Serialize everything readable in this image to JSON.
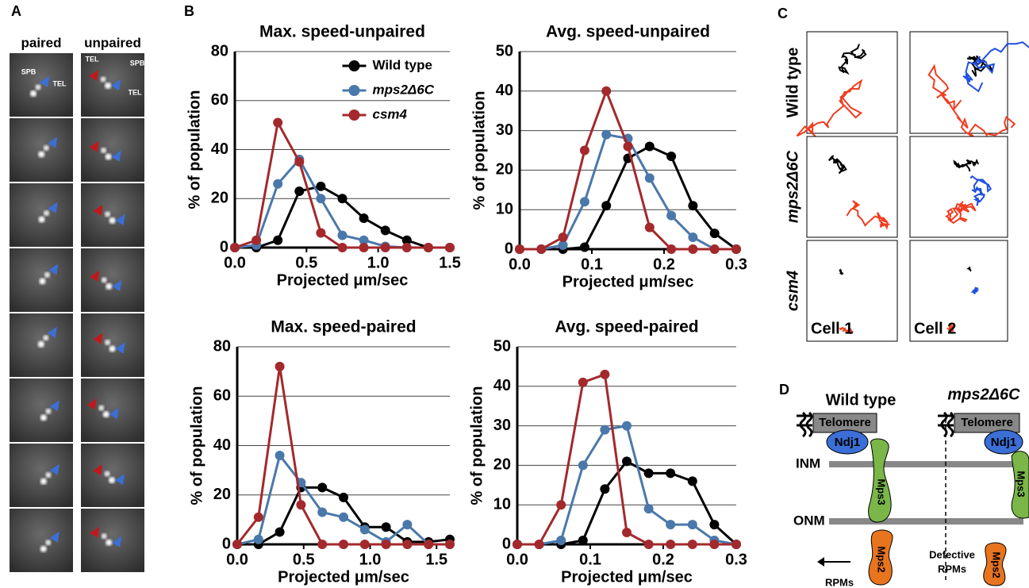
{
  "panel_a": {
    "letter": "A",
    "columns": [
      "paired",
      "unpaired"
    ],
    "annotations": [
      "SPB",
      "TEL",
      "TEL",
      "SPB",
      "TEL"
    ]
  },
  "panel_b": {
    "letter": "B"
  },
  "chart_data": [
    {
      "type": "line",
      "title": "Max. speed-unpaired",
      "xlabel": "Projected μm/sec",
      "ylabel": "% of population",
      "x": [
        0,
        0.15,
        0.3,
        0.45,
        0.6,
        0.75,
        0.9,
        1.05,
        1.2,
        1.35,
        1.5
      ],
      "xlim": [
        0,
        1.5
      ],
      "xticks": [
        {
          "value": 0,
          "label": "0.0"
        },
        0.5,
        {
          "value": 1,
          "label": "1.0"
        },
        1.5
      ],
      "ylim": [
        0,
        80
      ],
      "yticks": [
        0,
        20,
        40,
        60,
        80
      ],
      "grid": true,
      "legend": "upper right",
      "series": [
        {
          "name": "Wild type",
          "color": "#000000",
          "values": [
            0,
            0,
            3,
            23,
            25,
            20,
            12,
            7,
            3,
            0,
            0
          ]
        },
        {
          "name": "mps2Δ6C",
          "color": "#4a78aa",
          "values": [
            0,
            1,
            26,
            36,
            20,
            5,
            3,
            0.5,
            0,
            0,
            0
          ]
        },
        {
          "name": "csm4",
          "color": "#a3292c",
          "values": [
            0,
            3,
            51,
            35,
            6,
            0,
            0,
            0,
            0,
            0,
            0
          ]
        }
      ]
    },
    {
      "type": "line",
      "title": "Avg. speed-unpaired",
      "xlabel": "Projected μm/sec",
      "ylabel": "% of population",
      "x": [
        0,
        0.03,
        0.06,
        0.09,
        0.12,
        0.15,
        0.18,
        0.21,
        0.24,
        0.27,
        0.3
      ],
      "xlim": [
        0,
        0.3
      ],
      "xticks": [
        {
          "value": 0,
          "label": "0.0"
        },
        0.1,
        0.2,
        0.3
      ],
      "ylim": [
        0,
        50
      ],
      "yticks": [
        0,
        10,
        20,
        30,
        40,
        50
      ],
      "grid": true,
      "series": [
        {
          "color": "#000000",
          "values": [
            0,
            0,
            0,
            0.5,
            11,
            23,
            26,
            23.5,
            11,
            4,
            0
          ]
        },
        {
          "color": "#4a78aa",
          "values": [
            0,
            0,
            1,
            12,
            29,
            28,
            18,
            8.5,
            3,
            0,
            0
          ]
        },
        {
          "color": "#a3292c",
          "values": [
            0,
            0,
            3,
            25,
            40,
            26,
            5.5,
            0,
            0,
            0,
            0
          ]
        }
      ]
    },
    {
      "type": "line",
      "title": "Max. speed-paired",
      "xlabel": "Projected μm/sec",
      "ylabel": "% of population",
      "x": [
        0,
        0.16,
        0.32,
        0.48,
        0.64,
        0.8,
        0.96,
        1.12,
        1.28,
        1.44,
        1.6
      ],
      "xlim": [
        0,
        1.6
      ],
      "xticks": [
        {
          "value": 0,
          "label": "0.0"
        },
        0.5,
        {
          "value": 1,
          "label": "1.0"
        },
        1.5
      ],
      "ylim": [
        0,
        80
      ],
      "yticks": [
        0,
        20,
        40,
        60,
        80
      ],
      "grid": true,
      "series": [
        {
          "color": "#000000",
          "values": [
            0,
            0,
            5,
            23,
            23,
            19,
            7,
            7,
            1,
            1,
            2
          ]
        },
        {
          "color": "#4a78aa",
          "values": [
            0,
            2,
            36,
            25,
            13,
            11,
            6,
            1,
            8,
            0,
            0
          ]
        },
        {
          "color": "#a3292c",
          "values": [
            0,
            11,
            72,
            16,
            0,
            0,
            0,
            0,
            0,
            0,
            0
          ]
        }
      ]
    },
    {
      "type": "line",
      "title": "Avg. speed-paired",
      "xlabel": "Projected μm/sec",
      "ylabel": "% of population",
      "x": [
        0,
        0.03,
        0.06,
        0.09,
        0.12,
        0.15,
        0.18,
        0.21,
        0.24,
        0.27,
        0.3
      ],
      "xlim": [
        0,
        0.3
      ],
      "xticks": [
        {
          "value": 0,
          "label": "0.0"
        },
        0.1,
        0.2,
        0.3
      ],
      "ylim": [
        0,
        50
      ],
      "yticks": [
        0,
        10,
        20,
        30,
        40,
        50
      ],
      "grid": true,
      "series": [
        {
          "color": "#000000",
          "values": [
            0,
            0,
            0,
            1,
            14,
            21,
            18,
            18,
            16,
            5,
            0
          ]
        },
        {
          "color": "#4a78aa",
          "values": [
            0,
            0,
            1,
            20,
            29,
            30,
            9,
            5,
            5,
            1,
            0
          ]
        },
        {
          "color": "#a3292c",
          "values": [
            0,
            0,
            10,
            41,
            43,
            3,
            0,
            0,
            0,
            0,
            0
          ]
        }
      ]
    }
  ],
  "panel_c": {
    "letter": "C",
    "rows": [
      "Wild type",
      "mps2Δ6C",
      "csm4"
    ],
    "columns": [
      "Cell 1",
      "Cell 2"
    ]
  },
  "panel_d": {
    "letter": "D",
    "titles": [
      "Wild type",
      "mps2Δ6C"
    ],
    "telomere": "Telomere",
    "ndj1": "Ndj1",
    "inm": "INM",
    "onm": "ONM",
    "mps3": "Mps3",
    "mps2": "Mps2",
    "rpms": "RPMs",
    "defective": [
      "Defective",
      "RPMs"
    ]
  }
}
